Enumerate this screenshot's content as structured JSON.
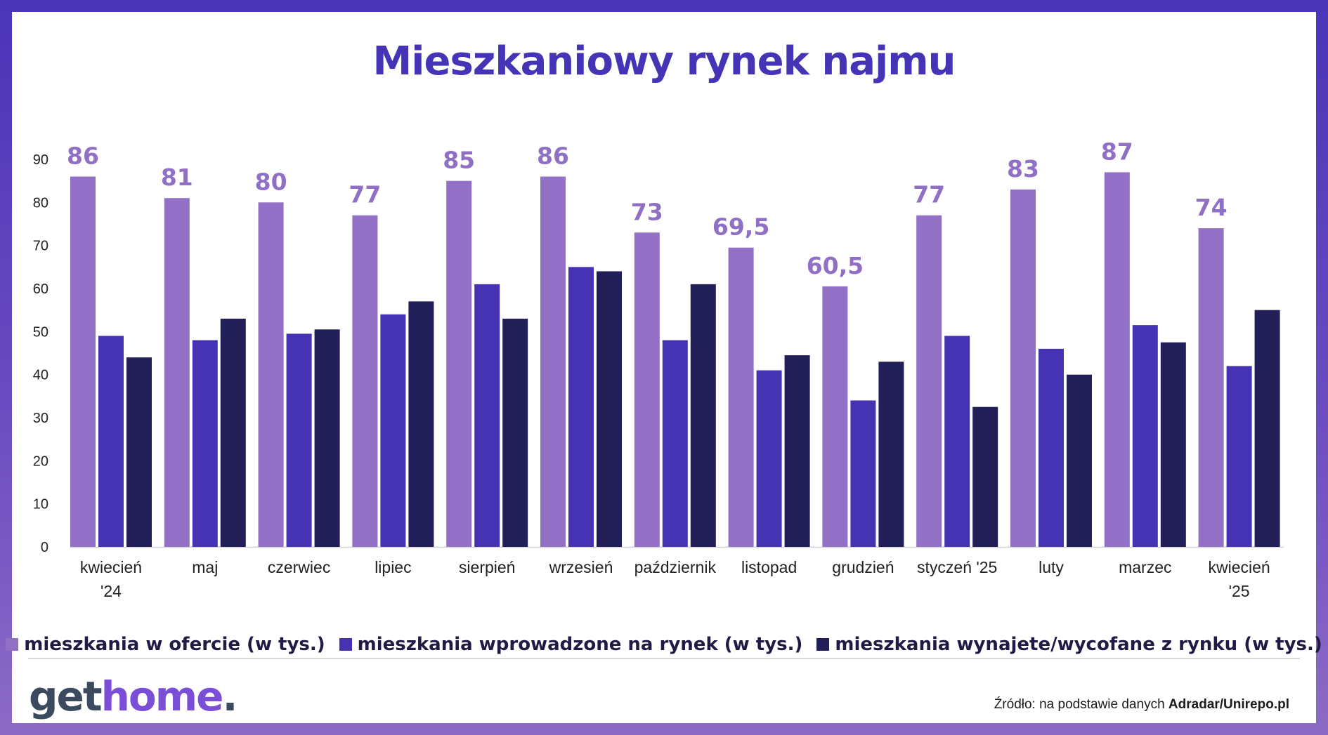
{
  "title": "Mieszkaniowy rynek najmu",
  "colors": {
    "series1": "#9170c6",
    "series2": "#4633b3",
    "series3": "#221e57",
    "label": "#8f70c4",
    "axis": "#222222"
  },
  "chart_data": {
    "type": "bar",
    "title": "Mieszkaniowy rynek najmu",
    "categories": [
      [
        "kwiecień",
        "'24"
      ],
      [
        "maj"
      ],
      [
        "czerwiec"
      ],
      [
        "lipiec"
      ],
      [
        "sierpień"
      ],
      [
        "wrzesień"
      ],
      [
        "październik"
      ],
      [
        "listopad"
      ],
      [
        "grudzień"
      ],
      [
        "styczeń '25"
      ],
      [
        "luty"
      ],
      [
        "marzec"
      ],
      [
        "kwiecień",
        "'25"
      ]
    ],
    "series": [
      {
        "name": "mieszkania w ofercie (w tys.)",
        "values": [
          86,
          81,
          80,
          77,
          85,
          86,
          73,
          69.5,
          60.5,
          77,
          83,
          87,
          74
        ]
      },
      {
        "name": "mieszkania wprowadzone na rynek (w tys.)",
        "values": [
          49,
          48,
          49.5,
          54,
          61,
          65,
          48,
          41,
          34,
          49,
          46,
          51.5,
          42
        ]
      },
      {
        "name": "mieszkania wynajete/wycofane z rynku (w tys.)",
        "values": [
          44,
          53,
          50.5,
          57,
          53,
          64,
          61,
          44.5,
          43,
          32.5,
          40,
          47.5,
          55
        ]
      }
    ],
    "data_labels": [
      "86",
      "81",
      "80",
      "77",
      "85",
      "86",
      "73",
      "69,5",
      "60,5",
      "77",
      "83",
      "87",
      "74"
    ],
    "y_ticks": [
      "0",
      "10",
      "20",
      "30",
      "40",
      "50",
      "60",
      "70",
      "80",
      "90"
    ],
    "ylim": [
      0,
      90
    ],
    "grid": false,
    "legend_position": "bottom"
  },
  "logo": {
    "part1": "get",
    "part2": "home",
    "dot": "."
  },
  "source": {
    "prefix": "Źródło: na podstawie danych ",
    "bold": "Adradar/Unirepo.pl"
  }
}
